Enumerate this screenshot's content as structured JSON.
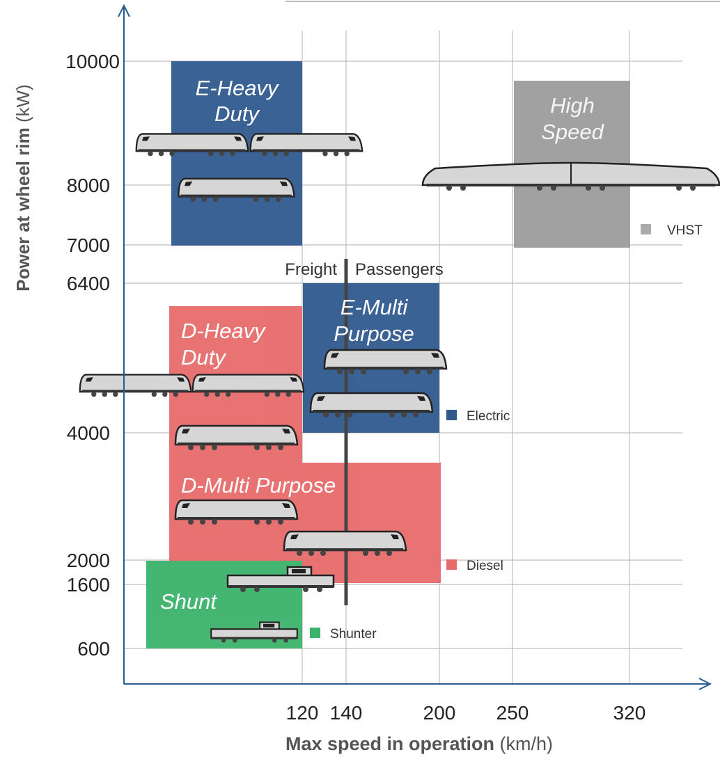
{
  "y_axis": {
    "title": "Power at wheel rim",
    "unit": "(kW)",
    "ticks": [
      10000,
      8000,
      7000,
      6400,
      4000,
      2000,
      1600,
      600
    ]
  },
  "x_axis": {
    "title": "Max speed in operation",
    "unit": "(km/h)",
    "ticks": [
      120,
      140,
      200,
      250,
      320
    ]
  },
  "regions": [
    {
      "lines": [
        "E-Heavy",
        "Duty"
      ]
    },
    {
      "lines": [
        "High",
        "Speed"
      ]
    },
    {
      "lines": [
        "D-Heavy",
        "Duty"
      ]
    },
    {
      "lines": [
        "E-Multi",
        "Purpose"
      ]
    },
    {
      "lines": [
        "D-Multi Purpose"
      ]
    },
    {
      "lines": [
        "Shunt"
      ]
    }
  ],
  "divider": {
    "left": "Freight",
    "right": "Passengers"
  },
  "legend": [
    "VHST",
    "Electric",
    "Diesel",
    "Shunter"
  ]
}
